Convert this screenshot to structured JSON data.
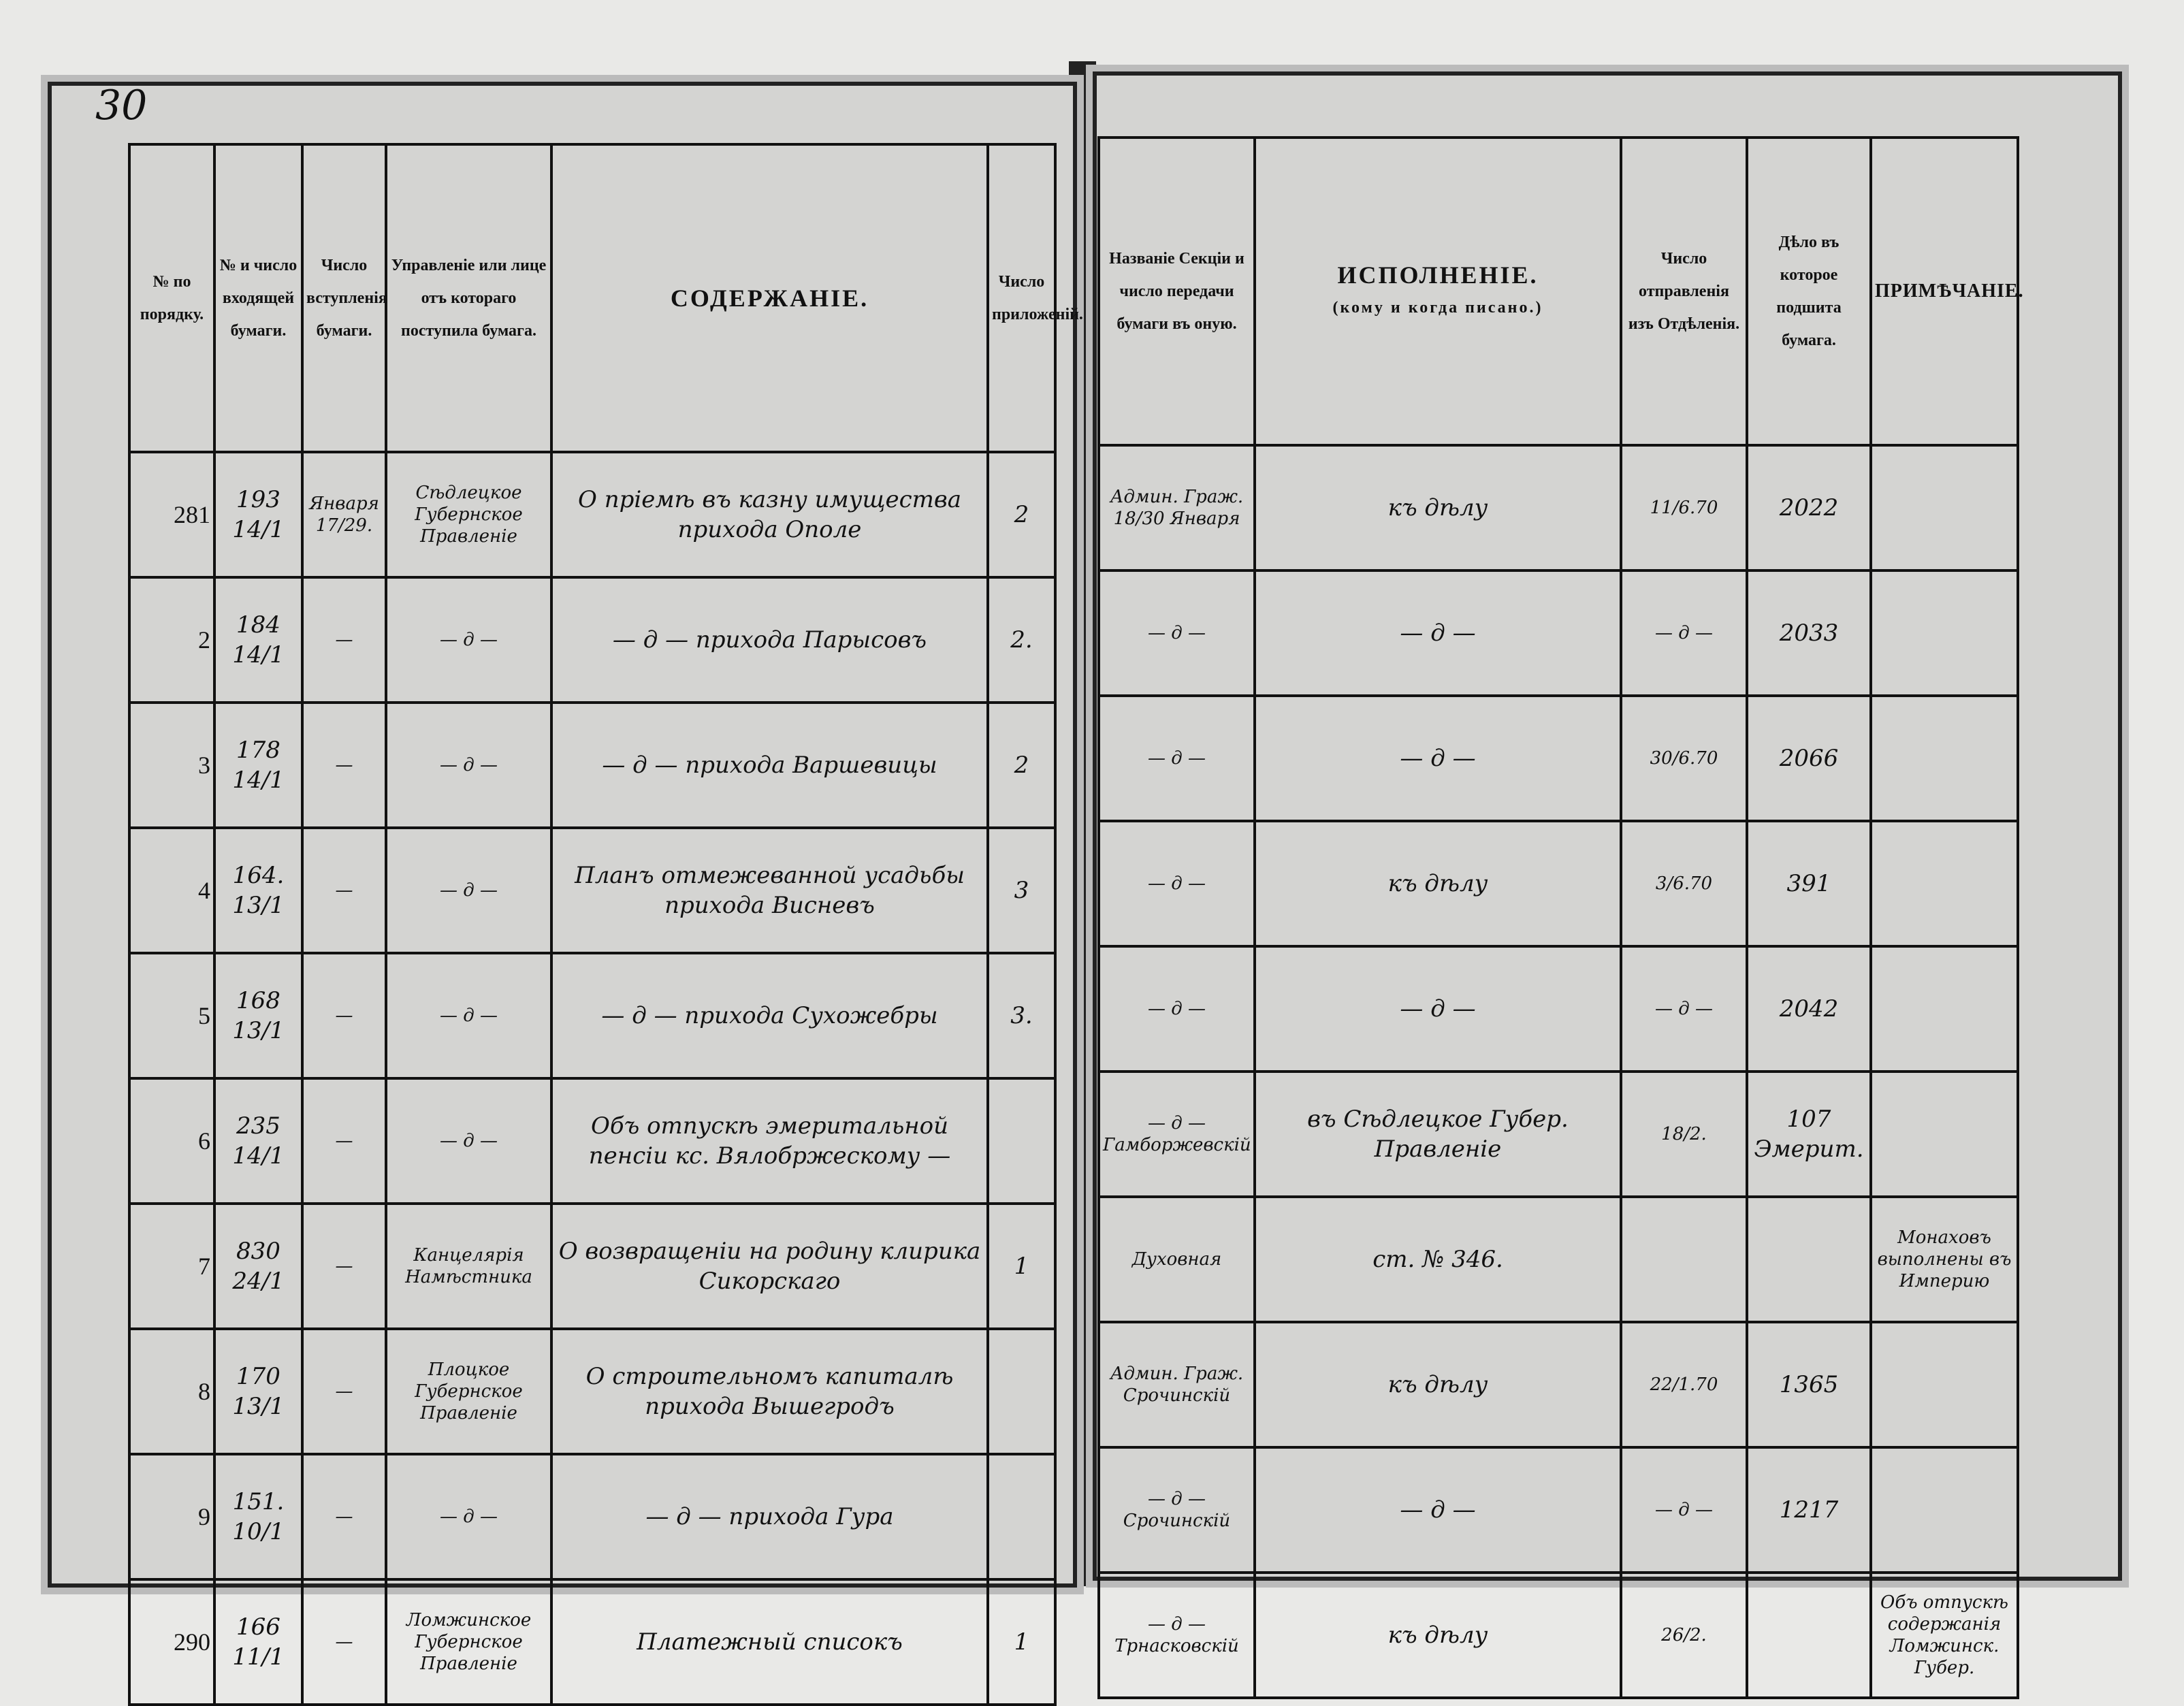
{
  "page_number": "30",
  "left": {
    "headers": [
      "№ по порядку.",
      "№ и число входящей бумаги.",
      "Число вступленія бумаги.",
      "Управленіе или лице отъ котораго поступила бумага.",
      "СОДЕРЖАНІЕ.",
      "Число приложеній."
    ],
    "rows": [
      {
        "n": "281",
        "in_no": "193",
        "in_date": "14/1",
        "entry": "Января 17/29.",
        "from": "Сѣдлецкое Губернское Правленіе",
        "content": "О пріемѣ въ казну имущества прихода Ополе",
        "att": "2"
      },
      {
        "n": "2",
        "in_no": "184",
        "in_date": "14/1",
        "entry": "—",
        "from": "— д —",
        "content": "— д — прихода Парысовъ",
        "att": "2."
      },
      {
        "n": "3",
        "in_no": "178",
        "in_date": "14/1",
        "entry": "—",
        "from": "— д —",
        "content": "— д — прихода Варшевицы",
        "att": "2"
      },
      {
        "n": "4",
        "in_no": "164.",
        "in_date": "13/1",
        "entry": "—",
        "from": "— д —",
        "content": "Планъ отмежеванной усадьбы прихода Висневъ",
        "att": "3"
      },
      {
        "n": "5",
        "in_no": "168",
        "in_date": "13/1",
        "entry": "—",
        "from": "— д —",
        "content": "— д — прихода Сухожебры",
        "att": "3."
      },
      {
        "n": "6",
        "in_no": "235",
        "in_date": "14/1",
        "entry": "—",
        "from": "— д —",
        "content": "Объ отпускѣ эмеритальной пенсіи кс. Вялобржескому —",
        "att": ""
      },
      {
        "n": "7",
        "in_no": "830",
        "in_date": "24/1",
        "entry": "—",
        "from": "Канцелярія Намѣстника",
        "content": "О возвращеніи на родину клирика Сикорскаго",
        "att": "1"
      },
      {
        "n": "8",
        "in_no": "170",
        "in_date": "13/1",
        "entry": "—",
        "from": "Плоцкое Губернское Правленіе",
        "content": "О строительномъ капиталѣ прихода Вышегродъ",
        "att": ""
      },
      {
        "n": "9",
        "in_no": "151.",
        "in_date": "10/1",
        "entry": "—",
        "from": "— д —",
        "content": "— д — прихода Гура",
        "att": ""
      },
      {
        "n": "290",
        "in_no": "166",
        "in_date": "11/1",
        "entry": "—",
        "from": "Ломжинское Губернское Правленіе",
        "content": "Платежный списокъ",
        "att": "1"
      }
    ]
  },
  "right": {
    "headers": [
      {
        "main": "Названіе Секціи и число передачи бумаги въ оную.",
        "sub": ""
      },
      {
        "main": "ИСПОЛНЕНІЕ.",
        "sub": "(кому и когда писано.)"
      },
      {
        "main": "Число отправленія изъ Отдѣленія.",
        "sub": ""
      },
      {
        "main": "Дѣло въ которое подшита бумага.",
        "sub": ""
      },
      {
        "main": "ПРИМѢЧАНІЕ.",
        "sub": ""
      }
    ],
    "rows": [
      {
        "section": "Админ. Граж. 18/30 Января",
        "exec": "къ дѣлу",
        "sent": "11/6.70",
        "case": "2022",
        "note": ""
      },
      {
        "section": "— д —",
        "exec": "— д —",
        "sent": "— д —",
        "case": "2033",
        "note": ""
      },
      {
        "section": "— д —",
        "exec": "— д —",
        "sent": "30/6.70",
        "case": "2066",
        "note": ""
      },
      {
        "section": "— д —",
        "exec": "къ дѣлу",
        "sent": "3/6.70",
        "case": "391",
        "note": ""
      },
      {
        "section": "— д —",
        "exec": "— д —",
        "sent": "— д —",
        "case": "2042",
        "note": ""
      },
      {
        "section": "— д — Гамборжевскій",
        "exec": "въ Сѣдлецкое Губер. Правленіе",
        "sent": "18/2.",
        "case": "107 Эмерит.",
        "note": ""
      },
      {
        "section": "Духовная",
        "exec": "ст. № 346.",
        "sent": "",
        "case": "",
        "note": "Монаховъ выполнены въ Империю"
      },
      {
        "section": "Админ. Граж. Срочинскій",
        "exec": "къ дѣлу",
        "sent": "22/1.70",
        "case": "1365",
        "note": ""
      },
      {
        "section": "— д — Срочинскій",
        "exec": "— д —",
        "sent": "— д —",
        "case": "1217",
        "note": ""
      },
      {
        "section": "— д — Трнасковскій",
        "exec": "къ дѣлу",
        "sent": "26/2.",
        "case": "",
        "note": "Объ отпускѣ содержанія Ломжинск. Губер."
      }
    ]
  }
}
